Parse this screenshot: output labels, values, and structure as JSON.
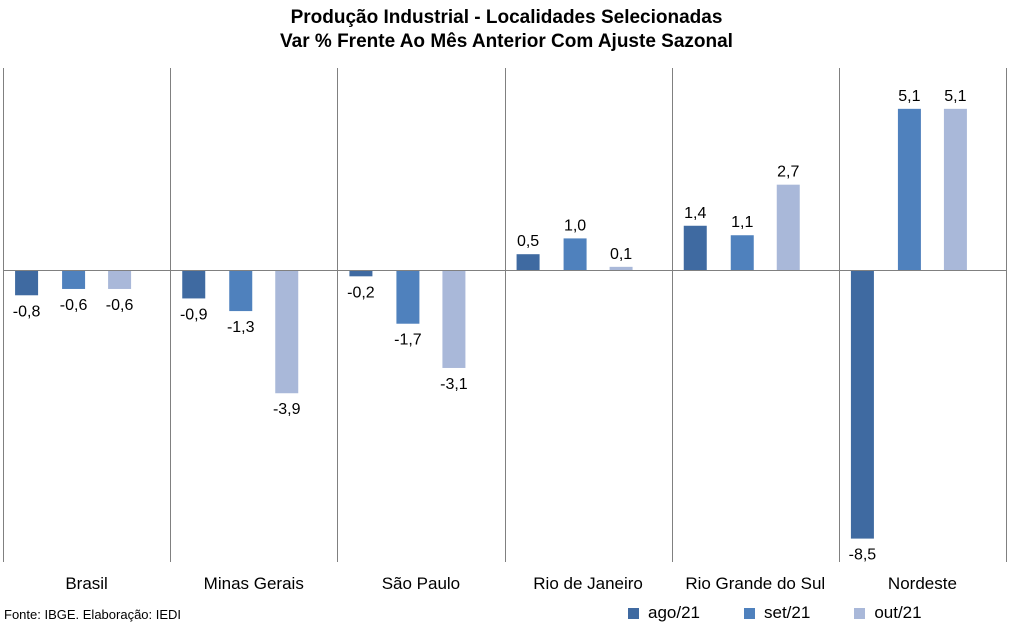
{
  "chart_data": {
    "type": "bar",
    "title": [
      "Produção Industrial - Localidades Selecionadas",
      "Var % Frente Ao Mês Anterior Com Ajuste Sazonal"
    ],
    "categories": [
      "Brasil",
      "Minas Gerais",
      "São Paulo",
      "Rio de Janeiro",
      "Rio Grande do Sul",
      "Nordeste"
    ],
    "series": [
      {
        "name": "ago/21",
        "color": "#3f6aa1",
        "values": [
          -0.8,
          -0.9,
          -0.2,
          0.5,
          1.4,
          -8.5
        ]
      },
      {
        "name": "set/21",
        "color": "#4f81bd",
        "values": [
          -0.6,
          -1.3,
          -1.7,
          1.0,
          1.1,
          5.1
        ]
      },
      {
        "name": "out/21",
        "color": "#a9b8d9",
        "values": [
          -0.6,
          -3.9,
          -3.1,
          0.1,
          2.7,
          5.1
        ]
      }
    ],
    "data_labels": [
      [
        "-0,8",
        "-0,9",
        "-0,2",
        "0,5",
        "1,4",
        "-8,5"
      ],
      [
        "-0,6",
        "-1,3",
        "-1,7",
        "1,0",
        "1,1",
        "5,1"
      ],
      [
        "-0,6",
        "-3,9",
        "-3,1",
        "0,1",
        "2,7",
        "5,1"
      ]
    ],
    "ylim": [
      -9,
      6.3
    ],
    "legend_position": "bottom-right",
    "grid": false,
    "source": "Fonte: IBGE. Elaboração: IEDI"
  }
}
